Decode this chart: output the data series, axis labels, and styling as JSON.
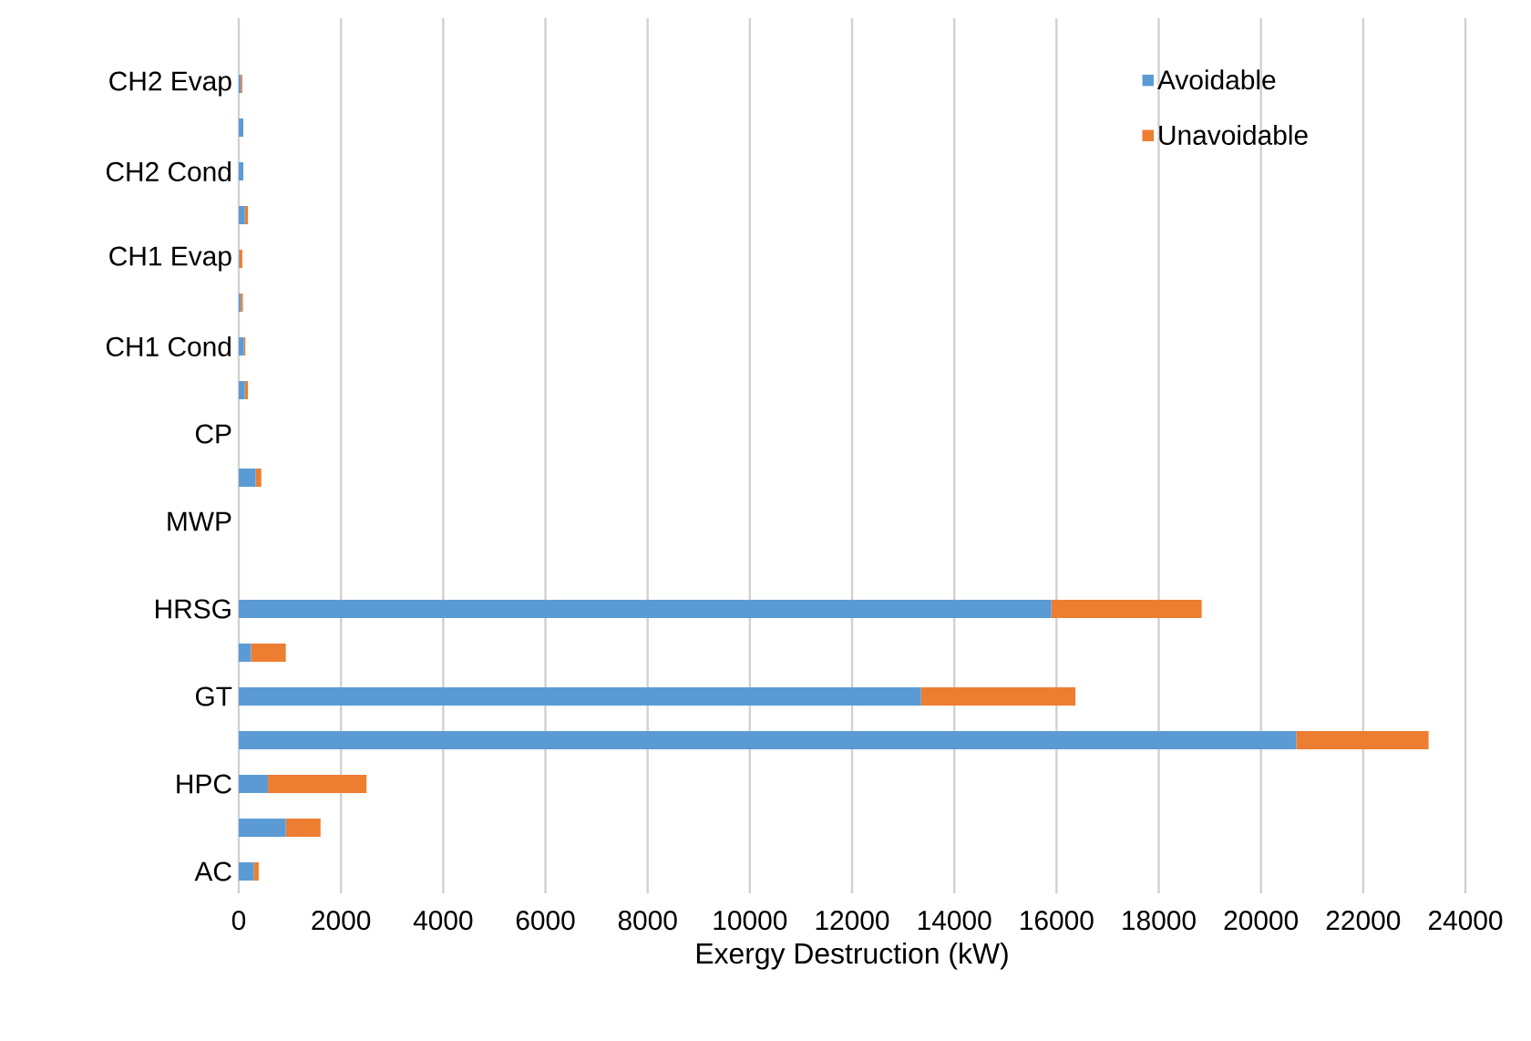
{
  "chart_data": {
    "type": "bar",
    "orientation": "horizontal",
    "stacked": true,
    "categories": [
      null,
      "CH2 Evap",
      null,
      "CH2 Cond",
      null,
      "CH1 Evap",
      null,
      "CH1 Cond",
      null,
      "CP",
      null,
      "MWP",
      null,
      "HRSG",
      null,
      "GT",
      null,
      "HPC",
      null,
      "AC"
    ],
    "series": [
      {
        "name": "Avoidable",
        "color": "#5b9bd5",
        "values": [
          null,
          40,
          90,
          90,
          120,
          10,
          40,
          100,
          120,
          null,
          330,
          null,
          null,
          15900,
          240,
          13350,
          20690,
          570,
          920,
          290
        ]
      },
      {
        "name": "Unavoidable",
        "color": "#ed7d31",
        "values": [
          null,
          30,
          0,
          0,
          60,
          60,
          40,
          30,
          60,
          null,
          110,
          null,
          null,
          2940,
          680,
          3020,
          2590,
          1930,
          680,
          100
        ]
      }
    ],
    "xlabel": "Exergy Destruction (kW)",
    "xlim": [
      0,
      24000
    ],
    "xticks": [
      0,
      2000,
      4000,
      6000,
      8000,
      10000,
      12000,
      14000,
      16000,
      18000,
      20000,
      22000,
      24000
    ],
    "grid": "x",
    "legend": "top right"
  }
}
